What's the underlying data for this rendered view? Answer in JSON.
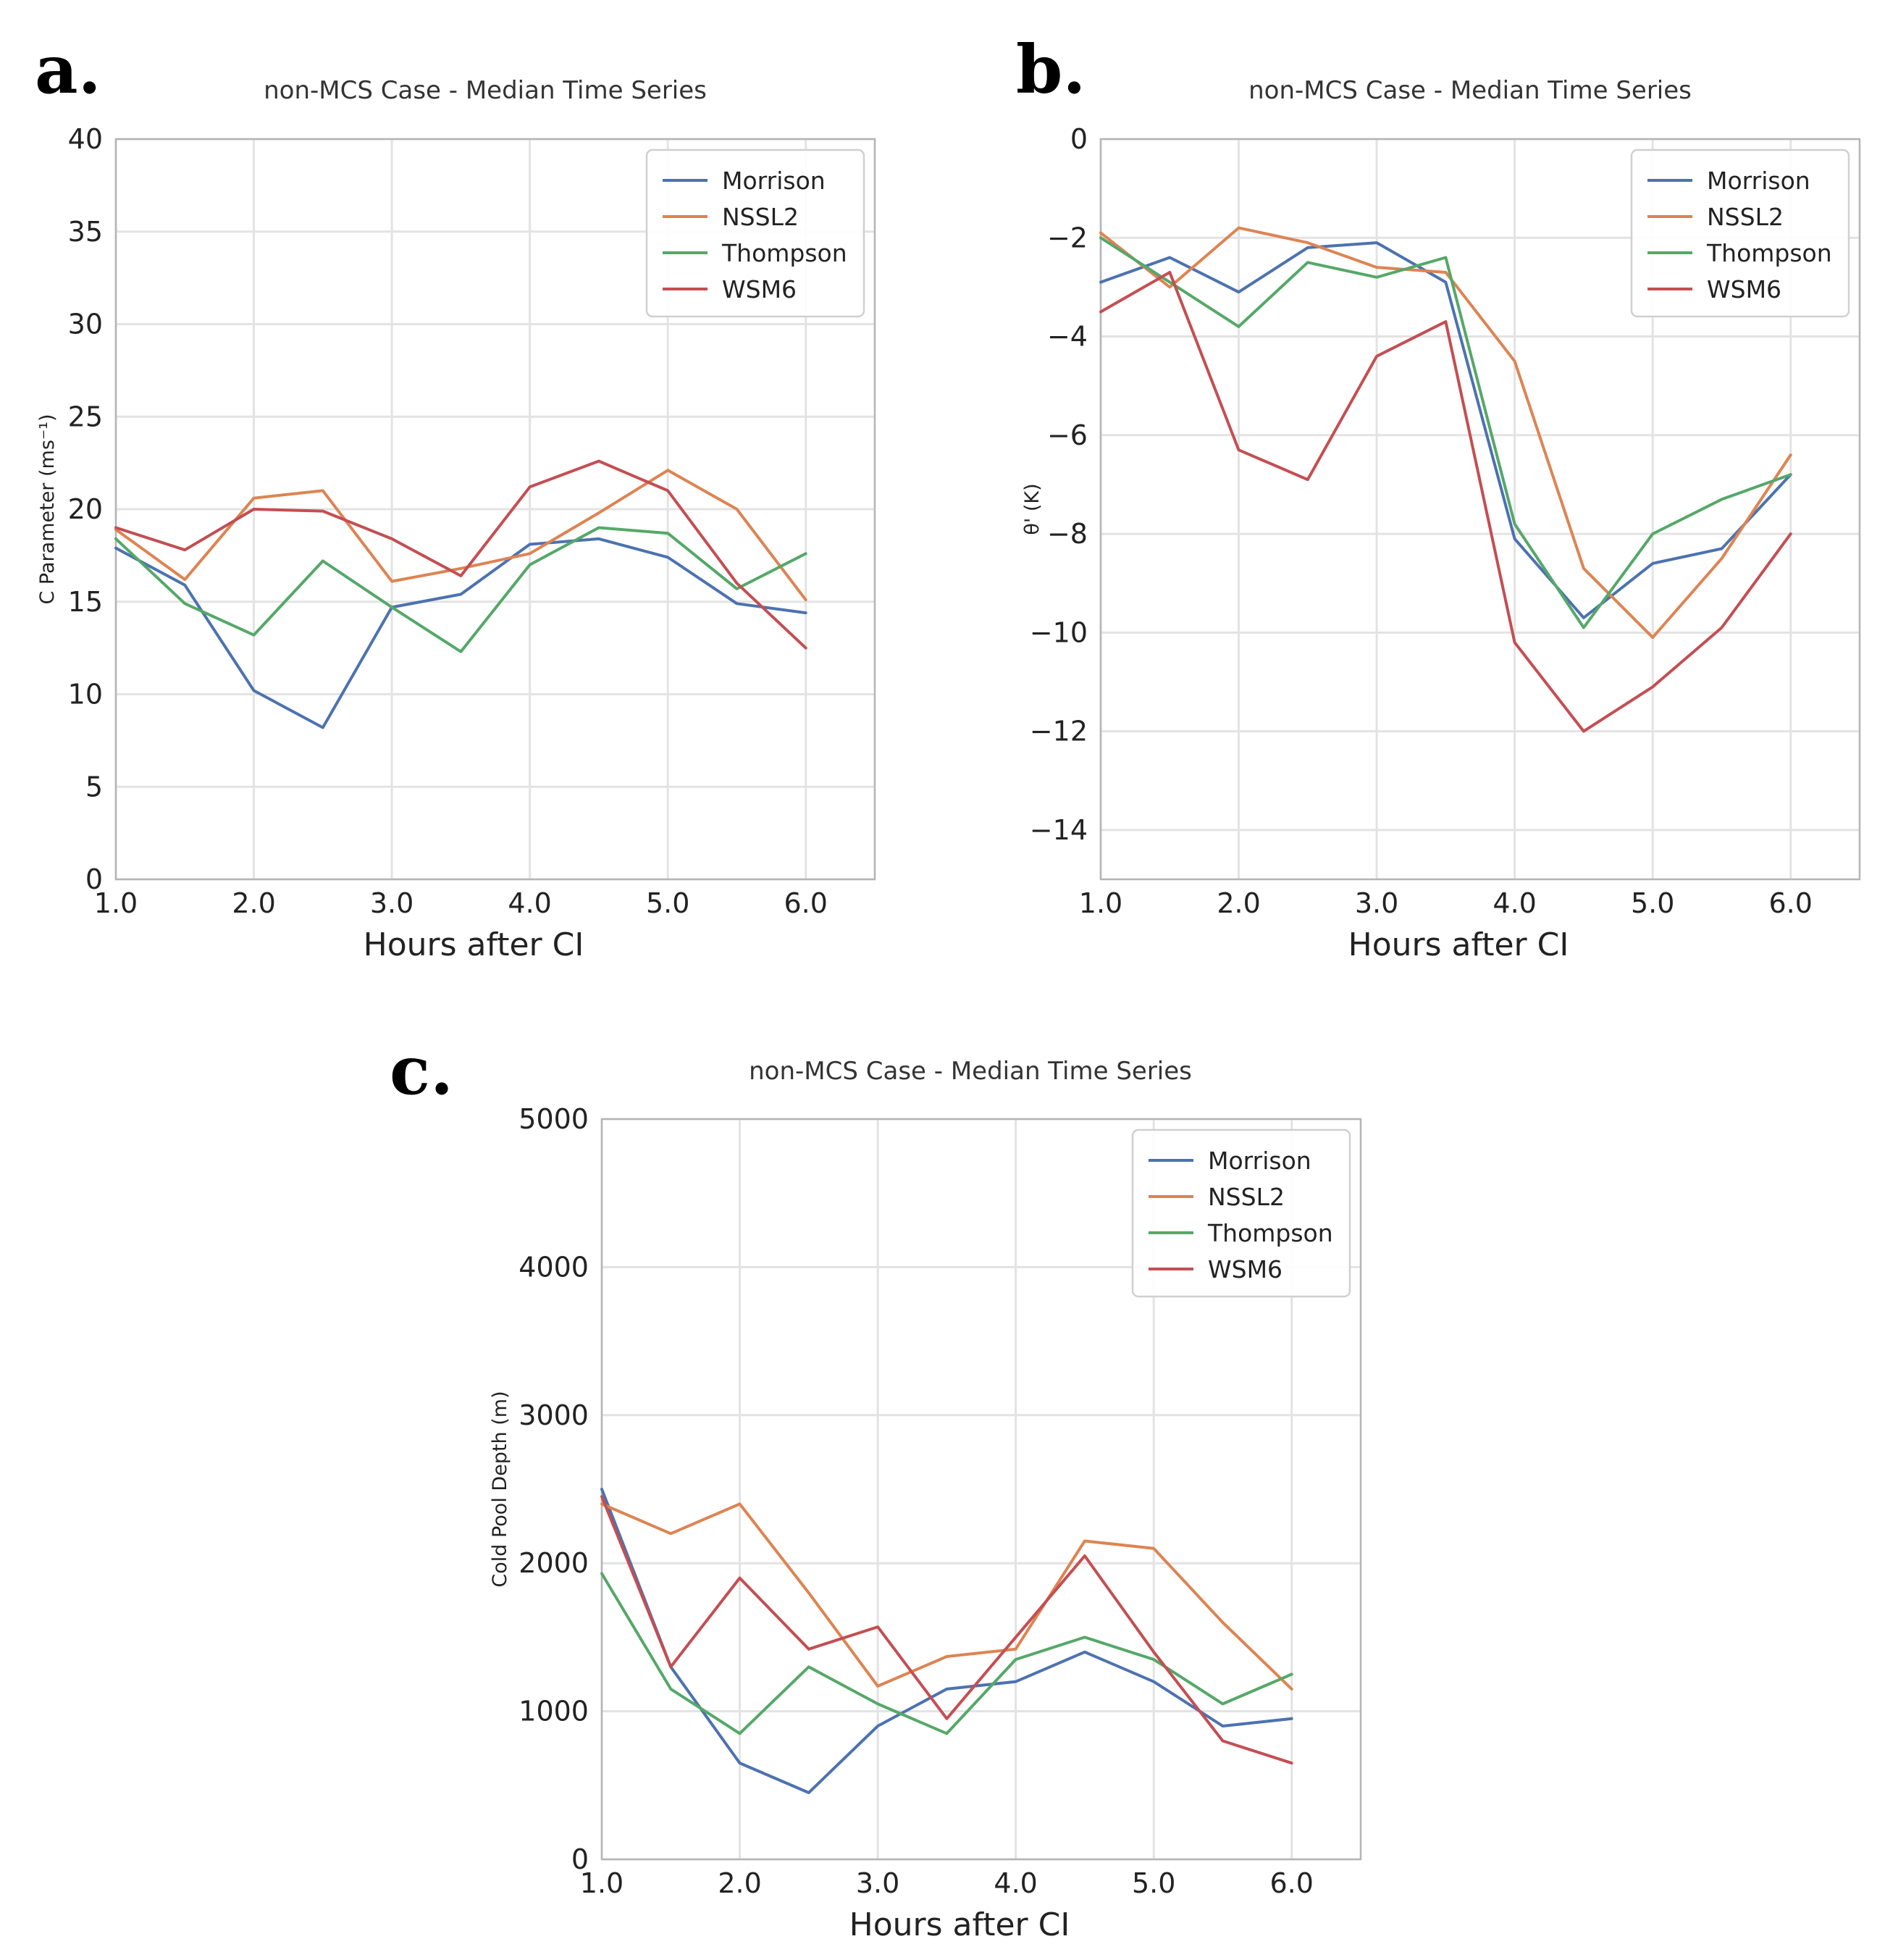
{
  "colors": {
    "Morrison": "#4c72b0",
    "NSSL2": "#dd8452",
    "Thompson": "#55a868",
    "WSM6": "#c44e52"
  },
  "chart_data": [
    {
      "panel": "a.",
      "type": "line",
      "title": "non-MCS Case - Median Time Series",
      "xlabel": "Hours after CI",
      "ylabel": "C Parameter (ms⁻¹)",
      "xlim": [
        1.0,
        6.5
      ],
      "ylim": [
        0,
        40
      ],
      "xticks": [
        1.0,
        2.0,
        3.0,
        4.0,
        5.0,
        6.0
      ],
      "xtick_labels": [
        "1.0",
        "2.0",
        "3.0",
        "4.0",
        "5.0",
        "6.0"
      ],
      "yticks": [
        0,
        5,
        10,
        15,
        20,
        25,
        30,
        35,
        40
      ],
      "ytick_labels": [
        "0",
        "5",
        "10",
        "15",
        "20",
        "25",
        "30",
        "35",
        "40"
      ],
      "grid": true,
      "legend": "top-right",
      "x": [
        1.0,
        1.5,
        2.0,
        2.5,
        3.0,
        3.5,
        4.0,
        4.5,
        5.0,
        5.5,
        6.0
      ],
      "series": [
        {
          "name": "Morrison",
          "values": [
            17.9,
            15.9,
            10.2,
            8.2,
            14.7,
            15.4,
            18.1,
            18.4,
            17.4,
            14.9,
            14.4
          ]
        },
        {
          "name": "NSSL2",
          "values": [
            18.9,
            16.2,
            20.6,
            21.0,
            16.1,
            16.8,
            17.6,
            19.8,
            22.1,
            20.0,
            15.1
          ]
        },
        {
          "name": "Thompson",
          "values": [
            18.4,
            14.9,
            13.2,
            17.2,
            14.7,
            12.3,
            17.0,
            19.0,
            18.7,
            15.7,
            17.6
          ]
        },
        {
          "name": "WSM6",
          "values": [
            19.0,
            17.8,
            20.0,
            19.9,
            18.4,
            16.4,
            21.2,
            22.6,
            21.0,
            16.0,
            12.5
          ]
        }
      ]
    },
    {
      "panel": "b.",
      "type": "line",
      "title": "non-MCS Case - Median Time Series",
      "xlabel": "Hours after CI",
      "ylabel": "θ' (K)",
      "xlim": [
        1.0,
        6.5
      ],
      "ylim": [
        -15,
        0
      ],
      "xticks": [
        1.0,
        2.0,
        3.0,
        4.0,
        5.0,
        6.0
      ],
      "xtick_labels": [
        "1.0",
        "2.0",
        "3.0",
        "4.0",
        "5.0",
        "6.0"
      ],
      "yticks": [
        0,
        -2,
        -4,
        -6,
        -8,
        -10,
        -12,
        -14
      ],
      "ytick_labels": [
        "0",
        "−2",
        "−4",
        "−6",
        "−8",
        "−10",
        "−12",
        "−14"
      ],
      "grid": true,
      "legend": "top-right",
      "x": [
        1.0,
        1.5,
        2.0,
        2.5,
        3.0,
        3.5,
        4.0,
        4.5,
        5.0,
        5.5,
        6.0
      ],
      "series": [
        {
          "name": "Morrison",
          "values": [
            -2.9,
            -2.4,
            -3.1,
            -2.2,
            -2.1,
            -2.9,
            -8.1,
            -9.7,
            -8.6,
            -8.3,
            -6.8
          ]
        },
        {
          "name": "NSSL2",
          "values": [
            -1.9,
            -3.0,
            -1.8,
            -2.1,
            -2.6,
            -2.7,
            -4.5,
            -8.7,
            -10.1,
            -8.5,
            -6.4
          ]
        },
        {
          "name": "Thompson",
          "values": [
            -2.0,
            -2.9,
            -3.8,
            -2.5,
            -2.8,
            -2.4,
            -7.8,
            -9.9,
            -8.0,
            -7.3,
            -6.8
          ]
        },
        {
          "name": "WSM6",
          "values": [
            -3.5,
            -2.7,
            -6.3,
            -6.9,
            -4.4,
            -3.7,
            -10.2,
            -12.0,
            -11.1,
            -9.9,
            -8.0
          ]
        }
      ]
    },
    {
      "panel": "c.",
      "type": "line",
      "title": "non-MCS Case - Median Time Series",
      "xlabel": "Hours after CI",
      "ylabel": "Cold Pool Depth (m)",
      "xlim": [
        1.0,
        6.5
      ],
      "ylim": [
        0,
        5000
      ],
      "xticks": [
        1.0,
        2.0,
        3.0,
        4.0,
        5.0,
        6.0
      ],
      "xtick_labels": [
        "1.0",
        "2.0",
        "3.0",
        "4.0",
        "5.0",
        "6.0"
      ],
      "yticks": [
        0,
        1000,
        2000,
        3000,
        4000,
        5000
      ],
      "ytick_labels": [
        "0",
        "1000",
        "2000",
        "3000",
        "4000",
        "5000"
      ],
      "grid": true,
      "legend": "top-right",
      "x": [
        1.0,
        1.5,
        2.0,
        2.5,
        3.0,
        3.5,
        4.0,
        4.5,
        5.0,
        5.5,
        6.0
      ],
      "series": [
        {
          "name": "Morrison",
          "values": [
            2500,
            1300,
            650,
            450,
            900,
            1150,
            1200,
            1400,
            1200,
            900,
            950
          ]
        },
        {
          "name": "NSSL2",
          "values": [
            2400,
            2200,
            2400,
            1800,
            1170,
            1370,
            1420,
            2150,
            2100,
            1600,
            1150
          ]
        },
        {
          "name": "Thompson",
          "values": [
            1930,
            1150,
            850,
            1300,
            1050,
            850,
            1350,
            1500,
            1350,
            1050,
            1250
          ]
        },
        {
          "name": "WSM6",
          "values": [
            2450,
            1300,
            1900,
            1420,
            1570,
            950,
            1500,
            2050,
            1400,
            800,
            650
          ]
        }
      ]
    }
  ]
}
